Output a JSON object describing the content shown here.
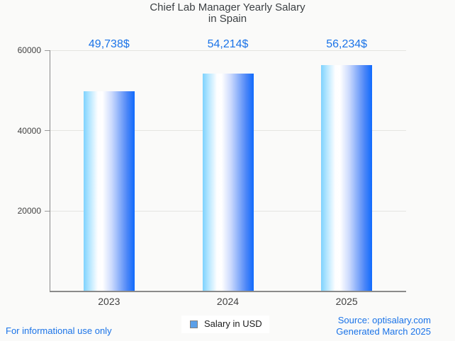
{
  "title": {
    "line1": "Chief Lab Manager Yearly Salary",
    "line2": "in Spain"
  },
  "chart_data": {
    "type": "bar",
    "title": "Chief Lab Manager Yearly Salary in Spain",
    "categories": [
      "2023",
      "2024",
      "2025"
    ],
    "values": [
      49738,
      54214,
      56234
    ],
    "value_labels": [
      "49,738$",
      "54,214$",
      "56,234$"
    ],
    "series": [
      {
        "name": "Salary in USD",
        "values": [
          49738,
          54214,
          56234
        ]
      }
    ],
    "xlabel": "",
    "ylabel": "",
    "ylim": [
      0,
      60000
    ],
    "yticks": [
      20000,
      40000,
      60000
    ],
    "ytick_labels": [
      "20000",
      "40000",
      "60000"
    ],
    "grid": "horizontal",
    "legend_position": "bottom"
  },
  "legend": {
    "label": "Salary in USD",
    "marker_color": "#5b9fe8"
  },
  "footer": {
    "left": "For informational use only",
    "source_line1": "Source: optisalary.com",
    "source_line2": "Generated March 2025"
  },
  "colors": {
    "accent_blue": "#1a73e8",
    "bar_gradient_left": "#7ed2fe",
    "bar_gradient_mid": "#ffffff",
    "bar_gradient_right": "#0f6afd",
    "axis": "#8a8a8a",
    "gridline": "#e4e4e1",
    "title_text": "#3c4043",
    "background": "#fafaf9"
  }
}
